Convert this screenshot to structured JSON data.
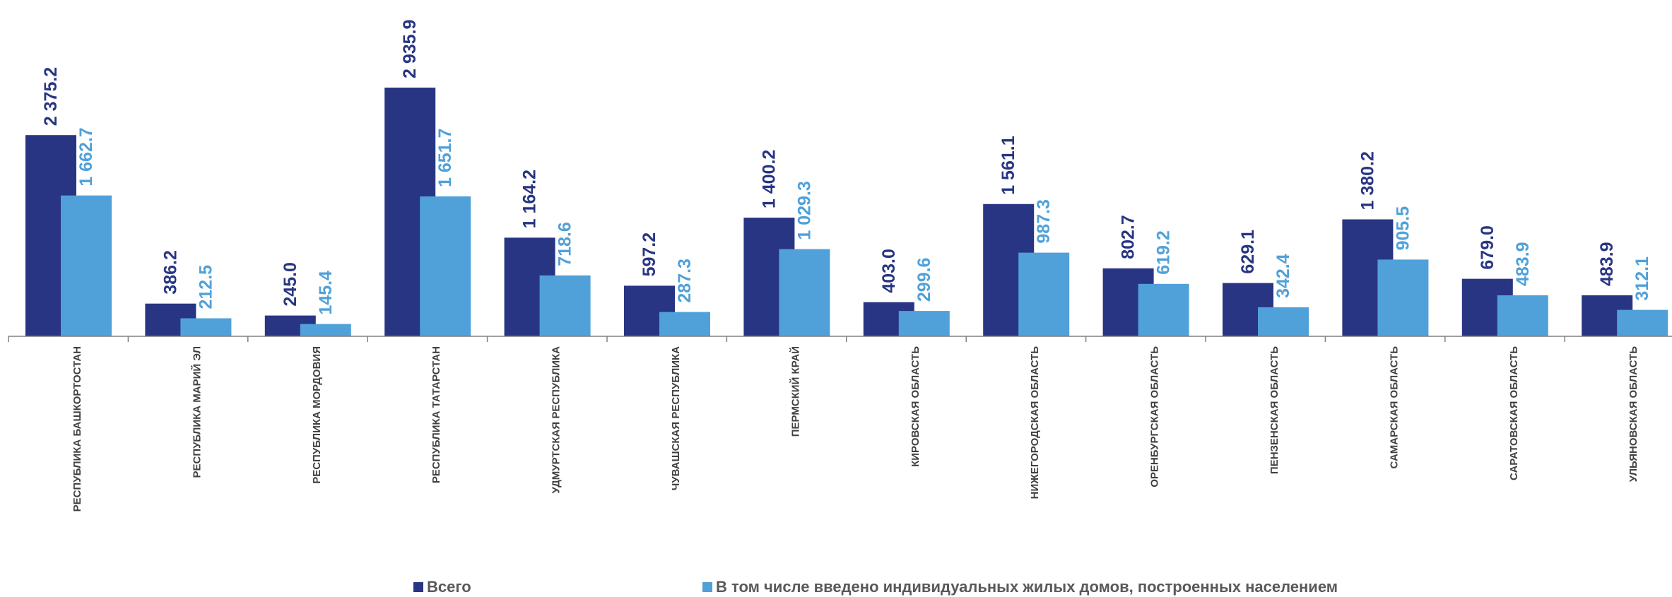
{
  "colors": {
    "total": "#283583",
    "ihs": "#50A1D9",
    "axis": "#808080"
  },
  "legend": {
    "total": "Всего",
    "ihs": "В том числе введено индивидуальных жилых домов, построенных населением"
  },
  "chart_data": {
    "type": "bar",
    "categories": [
      "РЕСПУБЛИКА БАШКОРТОСТАН",
      "РЕСПУБЛИКА МАРИЙ ЭЛ",
      "РЕСПУБЛИКА МОРДОВИЯ",
      "РЕСПУБЛИКА ТАТАРСТАН",
      "УДМУРТСКАЯ РЕСПУБЛИКА",
      "ЧУВАШСКАЯ РЕСПУБЛИКА",
      "ПЕРМСКИЙ КРАЙ",
      "КИРОВСКАЯ ОБЛАСТЬ",
      "НИЖЕГОРОДСКАЯ ОБЛАСТЬ",
      "ОРЕНБУРГСКАЯ ОБЛАСТЬ",
      "ПЕНЗЕНСКАЯ ОБЛАСТЬ",
      "САМАРСКАЯ ОБЛАСТЬ",
      "САРАТОВСКАЯ ОБЛАСТЬ",
      "УЛЬЯНОВСКАЯ ОБЛАСТЬ"
    ],
    "series": [
      {
        "name": "Всего",
        "values": [
          2375.2,
          386.2,
          245.0,
          2935.9,
          1164.2,
          597.2,
          1400.2,
          403.0,
          1561.1,
          802.7,
          629.1,
          1380.2,
          679.0,
          483.9
        ],
        "labels": [
          "2 375.2",
          "386.2",
          "245.0",
          "2 935.9",
          "1 164.2",
          "597.2",
          "1 400.2",
          "403.0",
          "1 561.1",
          "802.7",
          "629.1",
          "1 380.2",
          "679.0",
          "483.9"
        ]
      },
      {
        "name": "В том числе введено индивидуальных жилых домов, построенных населением",
        "values": [
          1662.7,
          212.5,
          145.4,
          1651.7,
          718.6,
          287.3,
          1029.3,
          299.6,
          987.3,
          619.2,
          342.4,
          905.5,
          483.9,
          312.1
        ],
        "labels": [
          "1 662.7",
          "212.5",
          "145.4",
          "1 651.7",
          "718.6",
          "287.3",
          "1 029.3",
          "299.6",
          "987.3",
          "619.2",
          "342.4",
          "905.5",
          "483.9",
          "312.1"
        ]
      }
    ],
    "ylim": [
      0,
      2935.9
    ],
    "grid": false,
    "legend_position": "bottom"
  }
}
